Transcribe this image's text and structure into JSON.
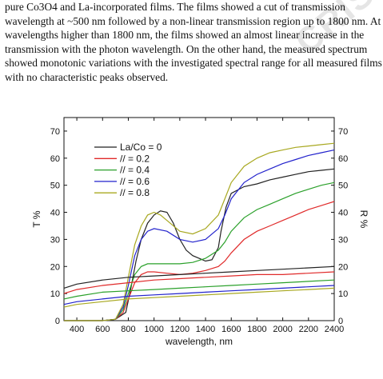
{
  "paragraph": {
    "lines": [
      "pure Co3O4 and La-incorporated films. The films showed a cut of transmission",
      "wavelength at ~500 nm followed by a non-linear transmission region up to 1800 nm. At",
      "wavelengths higher than 1800 nm, the films showed an almost linear increase in the",
      "transmission with the photon wavelength. On the other hand, the measured spectrum",
      "showed monotonic variations with the investigated spectral range for all measured films",
      "with no characteristic peaks observed."
    ]
  },
  "watermark": {
    "text": "CRIS"
  },
  "chart_data": {
    "type": "line",
    "xlabel": "wavelength, nm",
    "ylabel_left": "T %",
    "ylabel_right": "R %",
    "xlim": [
      300,
      2400
    ],
    "ylim": [
      0,
      75
    ],
    "x_ticks": [
      400,
      600,
      800,
      1000,
      1200,
      1400,
      1600,
      1800,
      2000,
      2200,
      2400
    ],
    "y_ticks": [
      0,
      10,
      20,
      30,
      40,
      50,
      60,
      70
    ],
    "grid": false,
    "legend": {
      "placement": "top-left",
      "entries": [
        {
          "label": "La/Co = 0",
          "color": "#222222"
        },
        {
          "label": "//      = 0.2",
          "color": "#e02a2a"
        },
        {
          "label": "//      = 0.4",
          "color": "#2aa02a"
        },
        {
          "label": "//      = 0.6",
          "color": "#2222cc"
        },
        {
          "label": "//      = 0.8",
          "color": "#a8a820"
        }
      ]
    },
    "series": [
      {
        "name": "La/Co = 0",
        "color": "#222222",
        "kind": "T",
        "x": [
          300,
          400,
          500,
          600,
          700,
          780,
          820,
          860,
          900,
          950,
          1000,
          1050,
          1100,
          1150,
          1200,
          1250,
          1300,
          1350,
          1400,
          1450,
          1500,
          1520,
          1560,
          1600,
          1700,
          1800,
          1900,
          2000,
          2100,
          2200,
          2300,
          2400
        ],
        "y": [
          0,
          0,
          0,
          0,
          0.5,
          3,
          12,
          22,
          30,
          36,
          39,
          40.5,
          40,
          36,
          30,
          26,
          24,
          23,
          22,
          22.5,
          27,
          33,
          42,
          47,
          49.5,
          50.5,
          52,
          53,
          54,
          55,
          55.5,
          56
        ]
      },
      {
        "name": "= 0.2",
        "color": "#e02a2a",
        "kind": "T",
        "x": [
          300,
          400,
          500,
          600,
          700,
          760,
          800,
          850,
          900,
          950,
          1000,
          1100,
          1200,
          1300,
          1400,
          1500,
          1550,
          1600,
          1700,
          1800,
          1900,
          2000,
          2100,
          2200,
          2300,
          2400
        ],
        "y": [
          0,
          0,
          0,
          0,
          0.5,
          3,
          8,
          14,
          17,
          18,
          18,
          17.5,
          17,
          17.5,
          18.5,
          20,
          22,
          25,
          30,
          33,
          35,
          37,
          39,
          41,
          42.5,
          44
        ]
      },
      {
        "name": "= 0.4",
        "color": "#2aa02a",
        "kind": "T",
        "x": [
          300,
          400,
          500,
          600,
          700,
          760,
          800,
          850,
          900,
          950,
          1000,
          1100,
          1200,
          1300,
          1400,
          1500,
          1550,
          1600,
          1700,
          1800,
          1900,
          2000,
          2100,
          2200,
          2300,
          2400
        ],
        "y": [
          0,
          0,
          0,
          0,
          0.5,
          4,
          10,
          17,
          20,
          21,
          21,
          21,
          21,
          21.5,
          23,
          26,
          29,
          33,
          38,
          41,
          43,
          45,
          47,
          48.5,
          50,
          51
        ]
      },
      {
        "name": "= 0.6",
        "color": "#2222cc",
        "kind": "T",
        "x": [
          300,
          400,
          500,
          600,
          700,
          760,
          800,
          850,
          900,
          950,
          1000,
          1100,
          1200,
          1300,
          1400,
          1500,
          1550,
          1600,
          1700,
          1800,
          1900,
          2000,
          2100,
          2200,
          2300,
          2400
        ],
        "y": [
          0,
          0,
          0,
          0,
          0.5,
          5,
          13,
          24,
          30,
          33,
          34,
          33,
          30,
          29,
          30,
          34,
          39,
          45,
          51,
          54,
          56,
          58,
          59.5,
          61,
          62,
          63
        ]
      },
      {
        "name": "= 0.8",
        "color": "#a8a820",
        "kind": "T",
        "x": [
          300,
          400,
          500,
          600,
          700,
          760,
          800,
          850,
          900,
          950,
          1000,
          1050,
          1100,
          1200,
          1300,
          1400,
          1500,
          1550,
          1600,
          1700,
          1800,
          1900,
          2000,
          2100,
          2200,
          2300,
          2400
        ],
        "y": [
          0,
          0,
          0,
          0,
          0.5,
          6,
          16,
          28,
          35,
          39,
          40,
          39,
          37,
          33,
          32,
          34,
          39,
          45,
          51,
          57,
          60,
          62,
          63,
          64,
          64.5,
          65,
          65.5
        ]
      },
      {
        "name": "R La/Co = 0",
        "color": "#222222",
        "kind": "R",
        "x": [
          300,
          400,
          600,
          800,
          1000,
          1200,
          1400,
          1600,
          1800,
          2000,
          2200,
          2400
        ],
        "y": [
          12,
          13.5,
          15,
          16,
          16.5,
          17,
          17.5,
          18,
          18.5,
          19,
          19.5,
          20
        ]
      },
      {
        "name": "R 0.2",
        "color": "#e02a2a",
        "kind": "R",
        "x": [
          300,
          400,
          600,
          800,
          1000,
          1200,
          1400,
          1600,
          1800,
          2000,
          2200,
          2400
        ],
        "y": [
          10,
          11.5,
          13,
          14,
          15,
          15.5,
          16,
          16.5,
          17,
          17,
          17.5,
          18
        ]
      },
      {
        "name": "R 0.4",
        "color": "#2aa02a",
        "kind": "R",
        "x": [
          300,
          400,
          600,
          800,
          1000,
          1200,
          1400,
          1600,
          1800,
          2000,
          2200,
          2400
        ],
        "y": [
          8,
          9,
          10.5,
          11,
          11.5,
          12,
          12.5,
          13,
          13.5,
          14,
          14.5,
          15
        ]
      },
      {
        "name": "R 0.6",
        "color": "#2222cc",
        "kind": "R",
        "x": [
          300,
          400,
          600,
          800,
          1000,
          1200,
          1400,
          1600,
          1800,
          2000,
          2200,
          2400
        ],
        "y": [
          6,
          7,
          8,
          9,
          9.5,
          10,
          10.5,
          11,
          11.5,
          12,
          12.5,
          13
        ]
      },
      {
        "name": "R 0.8",
        "color": "#a8a820",
        "kind": "R",
        "x": [
          300,
          400,
          600,
          800,
          1000,
          1200,
          1400,
          1600,
          1800,
          2000,
          2200,
          2400
        ],
        "y": [
          5,
          6,
          7,
          8,
          8.5,
          9,
          9.5,
          10,
          10.5,
          11,
          11.5,
          12
        ]
      }
    ]
  }
}
